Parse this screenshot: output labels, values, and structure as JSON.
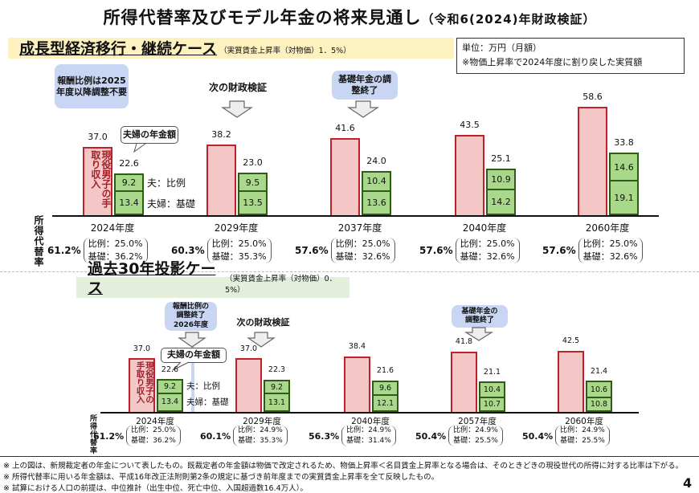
{
  "title": "所得代替率及びモデル年金の将来見通し",
  "title_sub": "（令和6(2024)年財政検証）",
  "unit_box": {
    "line1": "単位：万円（月額）",
    "line2": "※物価上昇率で2024年度に割り戻した実質額"
  },
  "page_number": "4",
  "ratio_label": "所得代替率",
  "colors": {
    "worker_income": "#f4c7c7",
    "pension": "#a9d88a",
    "callout": "#c9d6f3"
  },
  "chart_data": [
    {
      "type": "bar",
      "title": "成長型経済移行・継続ケース",
      "subtitle": "（実質賃金上昇率（対物価）1．5%）",
      "categories": [
        "2024年度",
        "2029年度",
        "2037年度",
        "2040年度",
        "2060年度"
      ],
      "worker_income": [
        37.0,
        38.2,
        41.6,
        43.5,
        58.6
      ],
      "couple_total": [
        22.6,
        23.0,
        24.0,
        25.1,
        33.8
      ],
      "series": [
        {
          "name": "夫：比例",
          "values": [
            9.2,
            9.5,
            10.4,
            10.9,
            14.6
          ]
        },
        {
          "name": "夫婦：基礎",
          "values": [
            13.4,
            13.5,
            13.6,
            14.2,
            19.1
          ]
        }
      ],
      "replacement_rate": [
        "61.2%",
        "60.3%",
        "57.6%",
        "57.6%",
        "57.6%"
      ],
      "ratio_proportional": [
        "比例：25.0%",
        "比例：25.0%",
        "比例：25.0%",
        "比例：25.0%",
        "比例：25.0%"
      ],
      "ratio_basic": [
        "基礎：36.2%",
        "基礎：35.3%",
        "基礎：32.6%",
        "基礎：32.6%",
        "基礎：32.6%"
      ],
      "worker_label": "現役男子の手取り収入",
      "couple_label": "夫婦の年金額",
      "callouts": {
        "a": "報酬比例は2025年度以降調整不要",
        "b": "次の財政検証",
        "c": "基礎年金の調整終了"
      }
    },
    {
      "type": "bar",
      "title": "過去30年投影ケース",
      "subtitle": "（実質賃金上昇率（対物価）0．5%）",
      "categories": [
        "2024年度",
        "2029年度",
        "2040年度",
        "2057年度",
        "2060年度"
      ],
      "worker_income": [
        37.0,
        37.0,
        38.4,
        41.8,
        42.5
      ],
      "couple_total": [
        22.6,
        22.3,
        21.6,
        21.1,
        21.4
      ],
      "series": [
        {
          "name": "夫：比例",
          "values": [
            9.2,
            9.2,
            9.6,
            10.4,
            10.6
          ]
        },
        {
          "name": "夫婦：基礎",
          "values": [
            13.4,
            13.1,
            12.1,
            10.7,
            10.8
          ]
        }
      ],
      "replacement_rate": [
        "61.2%",
        "60.1%",
        "56.3%",
        "50.4%",
        "50.4%"
      ],
      "ratio_proportional": [
        "比例：25.0%",
        "比例：24.9%",
        "比例：24.9%",
        "比例：24.9%",
        "比例：24.9%"
      ],
      "ratio_basic": [
        "基礎：36.2%",
        "基礎：35.3%",
        "基礎：31.4%",
        "基礎：25.5%",
        "基礎：25.5%"
      ],
      "worker_label": "現役男子の手取り収入",
      "couple_label": "夫婦の年金額",
      "callouts": {
        "a": "報酬比例の調整終了2026年度",
        "b": "次の財政検証",
        "c": "基礎年金の調整終了"
      }
    }
  ],
  "notes": [
    "※ 上の図は、新規裁定者の年金について表したもの。既裁定者の年金額は物価で改定されるため、物価上昇率＜名目賃金上昇率となる場合は、そのときどきの現役世代の所得に対する比率は下がる。",
    "※ 所得代替率に用いる年金額は、平成16年改正法附則第2条の規定に基づき前年度までの実質賃金上昇率を全て反映したもの。",
    "※ 試算における人口の前提は、中位推計（出生中位、死亡中位、入国超過数16.4万人）。"
  ]
}
